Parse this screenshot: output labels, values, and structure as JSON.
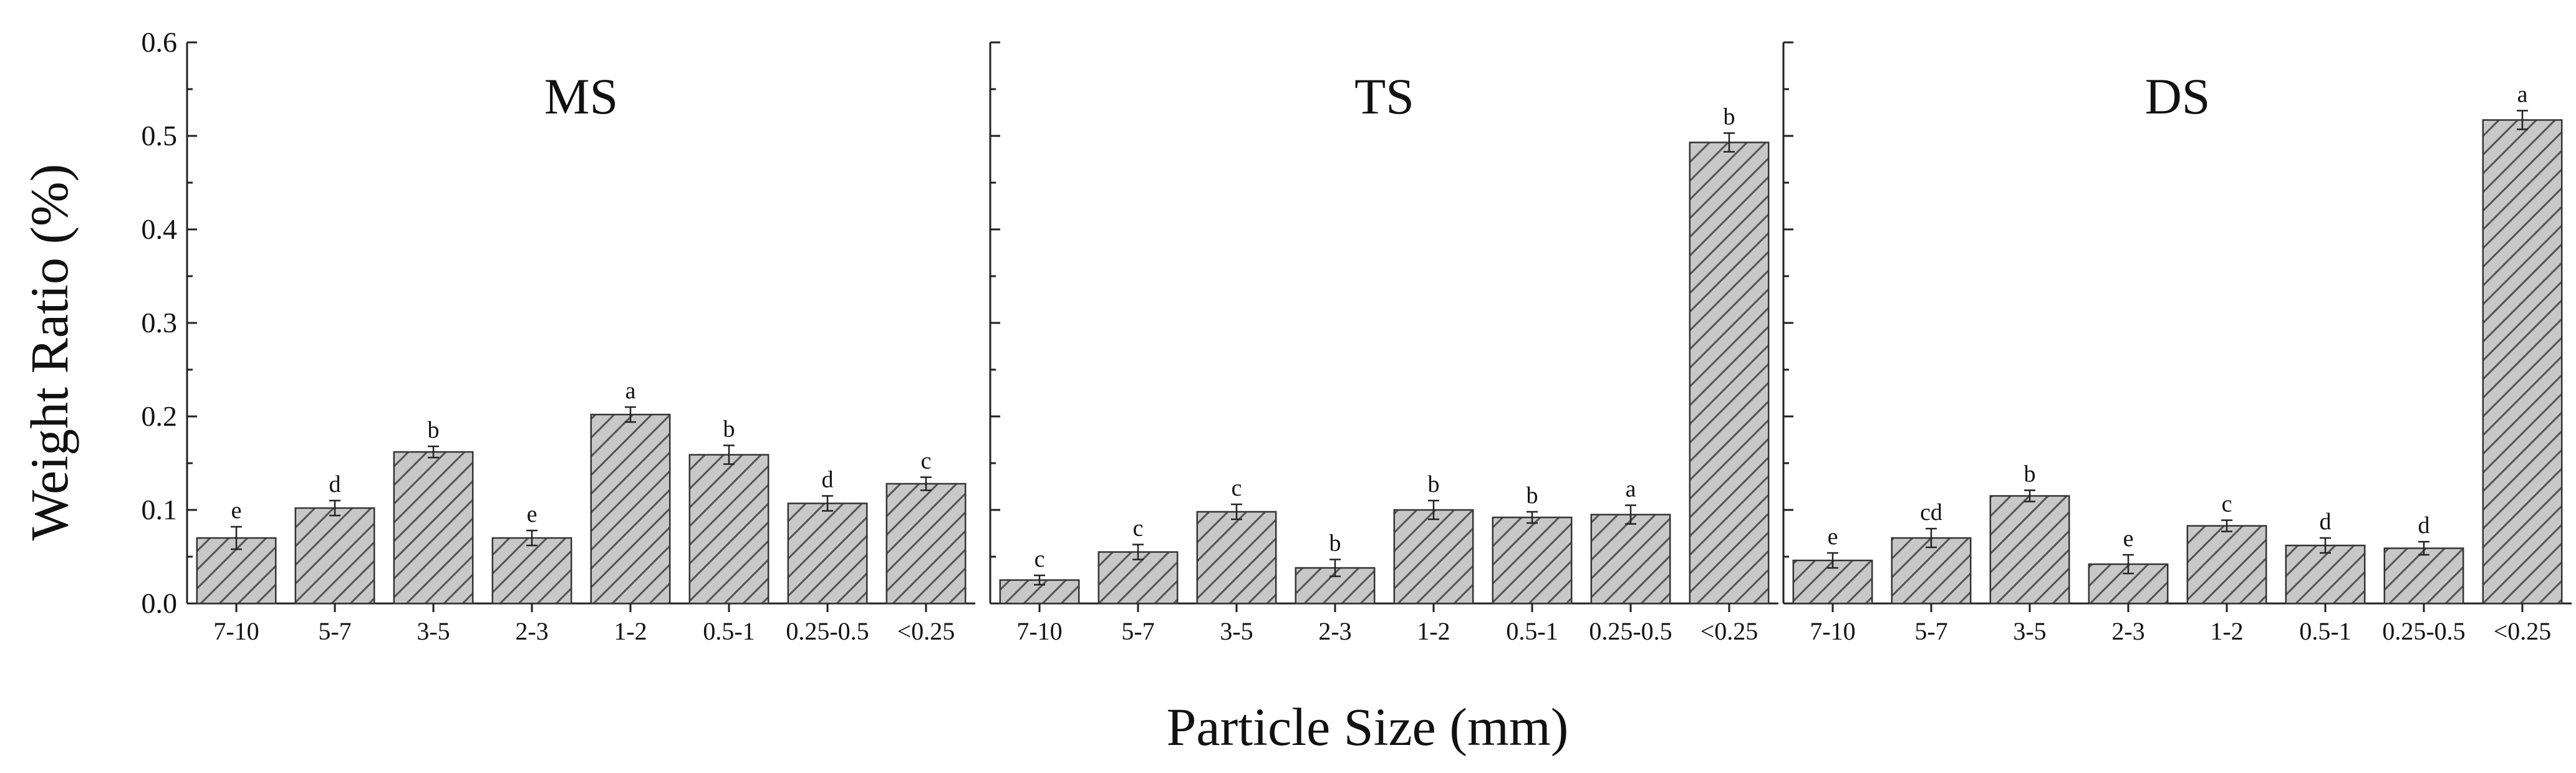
{
  "chart_data": {
    "type": "bar",
    "ylabel": "Weight Ratio (%)",
    "xlabel": "Particle Size (mm)",
    "ylim": [
      0,
      0.6
    ],
    "yticks": [
      "0.0",
      "0.1",
      "0.2",
      "0.3",
      "0.4",
      "0.5",
      "0.6"
    ],
    "categories": [
      "7-10",
      "5-7",
      "3-5",
      "2-3",
      "1-2",
      "0.5-1",
      "0.25-0.5",
      "<0.25"
    ],
    "colors": {
      "bar_fill": "#c8c8c8",
      "hatch": "#555555",
      "axis": "#222222"
    },
    "panels": [
      {
        "title": "MS",
        "values": [
          0.07,
          0.102,
          0.162,
          0.07,
          0.202,
          0.159,
          0.107,
          0.128
        ],
        "errors": [
          0.012,
          0.008,
          0.006,
          0.008,
          0.008,
          0.01,
          0.008,
          0.007
        ],
        "letters": [
          "e",
          "d",
          "b",
          "e",
          "a",
          "b",
          "d",
          "c"
        ]
      },
      {
        "title": "TS",
        "values": [
          0.025,
          0.055,
          0.098,
          0.038,
          0.1,
          0.092,
          0.095,
          0.493
        ],
        "errors": [
          0.005,
          0.008,
          0.008,
          0.009,
          0.01,
          0.006,
          0.01,
          0.01
        ],
        "letters": [
          "c",
          "c",
          "c",
          "b",
          "b",
          "b",
          "a",
          "b"
        ]
      },
      {
        "title": "DS",
        "values": [
          0.046,
          0.07,
          0.115,
          0.042,
          0.083,
          0.062,
          0.059,
          0.517
        ],
        "errors": [
          0.008,
          0.01,
          0.006,
          0.01,
          0.006,
          0.008,
          0.007,
          0.01
        ],
        "letters": [
          "e",
          "cd",
          "b",
          "e",
          "c",
          "d",
          "d",
          "a"
        ]
      }
    ]
  }
}
